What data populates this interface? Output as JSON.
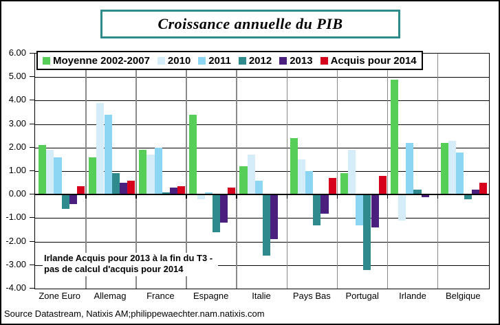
{
  "figure": {
    "title": "Croissance annuelle du PIB",
    "annotation_line1": "Irlande Acquis pour 2013 à la fin du T3 -",
    "annotation_line2": "pas de calcul d'acquis pour 2014",
    "source": "Source Datastream, Natixis AM;philippewaechter.nam.natixis.com",
    "accent_border_color": "#2E8B8B"
  },
  "chart_data": {
    "type": "bar",
    "title": "Croissance annuelle du PIB",
    "categories": [
      "Zone Euro",
      "Allemag",
      "France",
      "Espagne",
      "Italie",
      "Pays Bas",
      "Portugal",
      "Irlande",
      "Belgique"
    ],
    "series": [
      {
        "name": "Moyenne 2002-2007",
        "color": "#57CE57",
        "values": [
          2.1,
          1.6,
          1.9,
          3.4,
          1.2,
          2.4,
          0.9,
          4.9,
          2.2
        ]
      },
      {
        "name": "2010",
        "color": "#D5ECF9",
        "values": [
          1.9,
          3.9,
          1.7,
          -0.2,
          1.7,
          1.5,
          1.9,
          -1.1,
          2.3
        ]
      },
      {
        "name": "2011",
        "color": "#8CD6F4",
        "values": [
          1.6,
          3.4,
          2.0,
          0.1,
          0.6,
          1.0,
          -1.3,
          2.2,
          1.8
        ]
      },
      {
        "name": "2012",
        "color": "#2F8A8D",
        "values": [
          -0.6,
          0.9,
          0.1,
          -1.6,
          -2.6,
          -1.3,
          -3.2,
          0.2,
          -0.2
        ]
      },
      {
        "name": "2013",
        "color": "#4A1F7E",
        "values": [
          -0.4,
          0.5,
          0.3,
          -1.2,
          -1.9,
          -0.8,
          -1.4,
          -0.1,
          0.2
        ]
      },
      {
        "name": "Acquis pour 2014",
        "color": "#D6001C",
        "values": [
          0.35,
          0.6,
          0.35,
          0.3,
          0.05,
          0.7,
          0.8,
          null,
          0.5
        ]
      }
    ],
    "ylim": [
      -4,
      6
    ],
    "yticks": [
      "6.00",
      "5.00",
      "4.00",
      "3.00",
      "2.00",
      "1.00",
      "0.00",
      "-1.00",
      "-2.00",
      "-3.00",
      "-4.00"
    ],
    "grid": true,
    "legend_position": "top-inside",
    "gridline_color": "#000000",
    "category_divider_color": "#8A8A8A",
    "annotation": "Irlande Acquis pour 2013 à la fin du T3 - pas de calcul d'acquis pour 2014",
    "source": "Source Datastream, Natixis AM;philippewaechter.nam.natixis.com"
  }
}
